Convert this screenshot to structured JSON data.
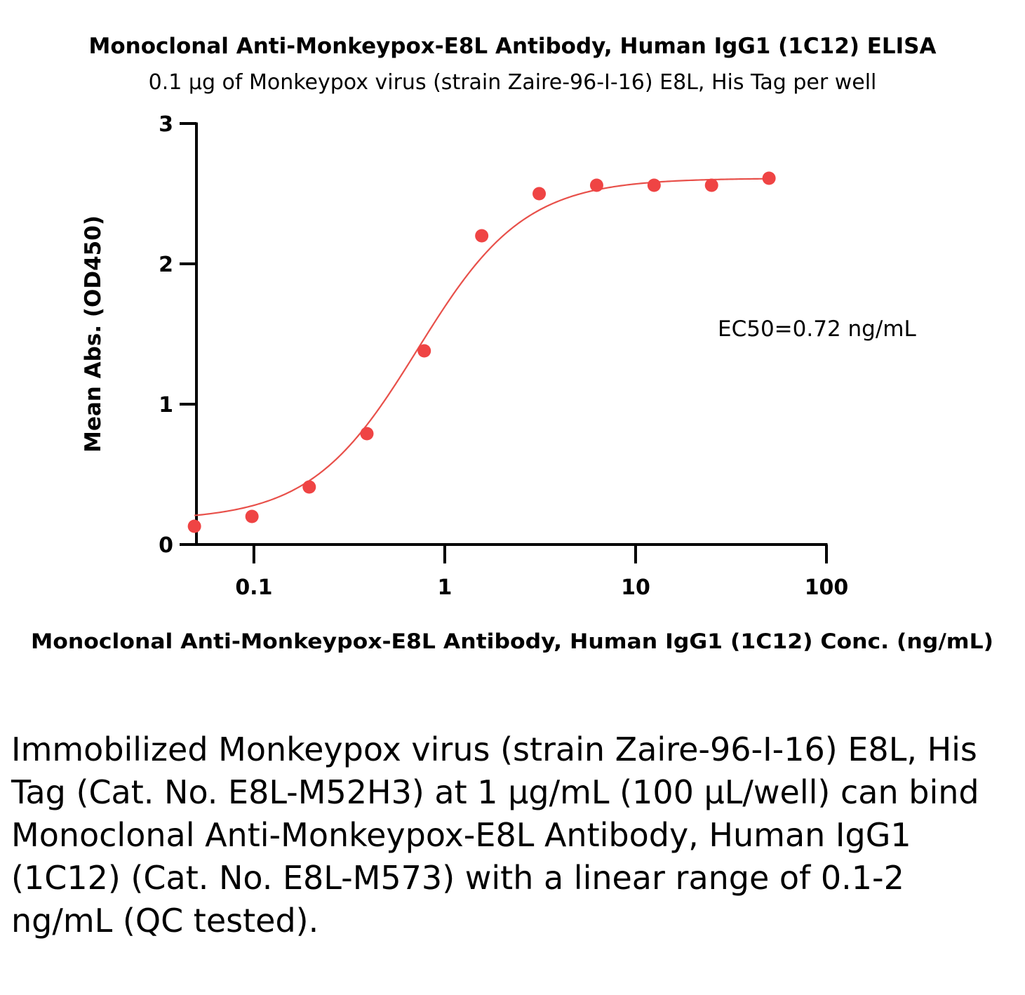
{
  "chart_data": {
    "type": "scatter",
    "title": "Monoclonal Anti-Monkeypox-E8L Antibody, Human IgG1 (1C12) ELISA",
    "subtitle": "0.1 µg of Monkeypox virus (strain Zaire-96-I-16) E8L, His Tag per well",
    "xlabel": "Monoclonal Anti-Monkeypox-E8L Antibody, Human IgG1 (1C12) Conc. (ng/mL)",
    "ylabel": "Mean Abs. (OD450)",
    "x_scale": "log",
    "xlim": [
      0.05,
      100
    ],
    "ylim": [
      0,
      3
    ],
    "x_ticks": [
      0.1,
      1,
      10,
      100
    ],
    "x_tick_labels": [
      "0.1",
      "1",
      "10",
      "100"
    ],
    "y_ticks": [
      0,
      1,
      2,
      3
    ],
    "y_tick_labels": [
      "0",
      "1",
      "2",
      "3"
    ],
    "grid": false,
    "series": [
      {
        "color": "#ef4444",
        "x": [
          0.0488,
          0.0977,
          0.195,
          0.391,
          0.781,
          1.5625,
          3.125,
          6.25,
          12.5,
          25,
          50
        ],
        "y": [
          0.13,
          0.2,
          0.41,
          0.79,
          1.38,
          2.2,
          2.5,
          2.56,
          2.56,
          2.56,
          2.61
        ]
      }
    ],
    "fit": {
      "bottom": 0.17,
      "top": 2.61,
      "ec50": 0.72,
      "hill": 1.55
    },
    "annotation": "EC50=0.72 ng/mL"
  },
  "caption": "Immobilized Monkeypox virus (strain Zaire-96-I-16) E8L, His Tag (Cat. No. E8L-M52H3) at 1 µg/mL (100 µL/well) can bind Monoclonal Anti-Monkeypox-E8L Antibody, Human IgG1 (1C12) (Cat. No. E8L-M573) with a linear range of 0.1-2 ng/mL (QC tested)."
}
